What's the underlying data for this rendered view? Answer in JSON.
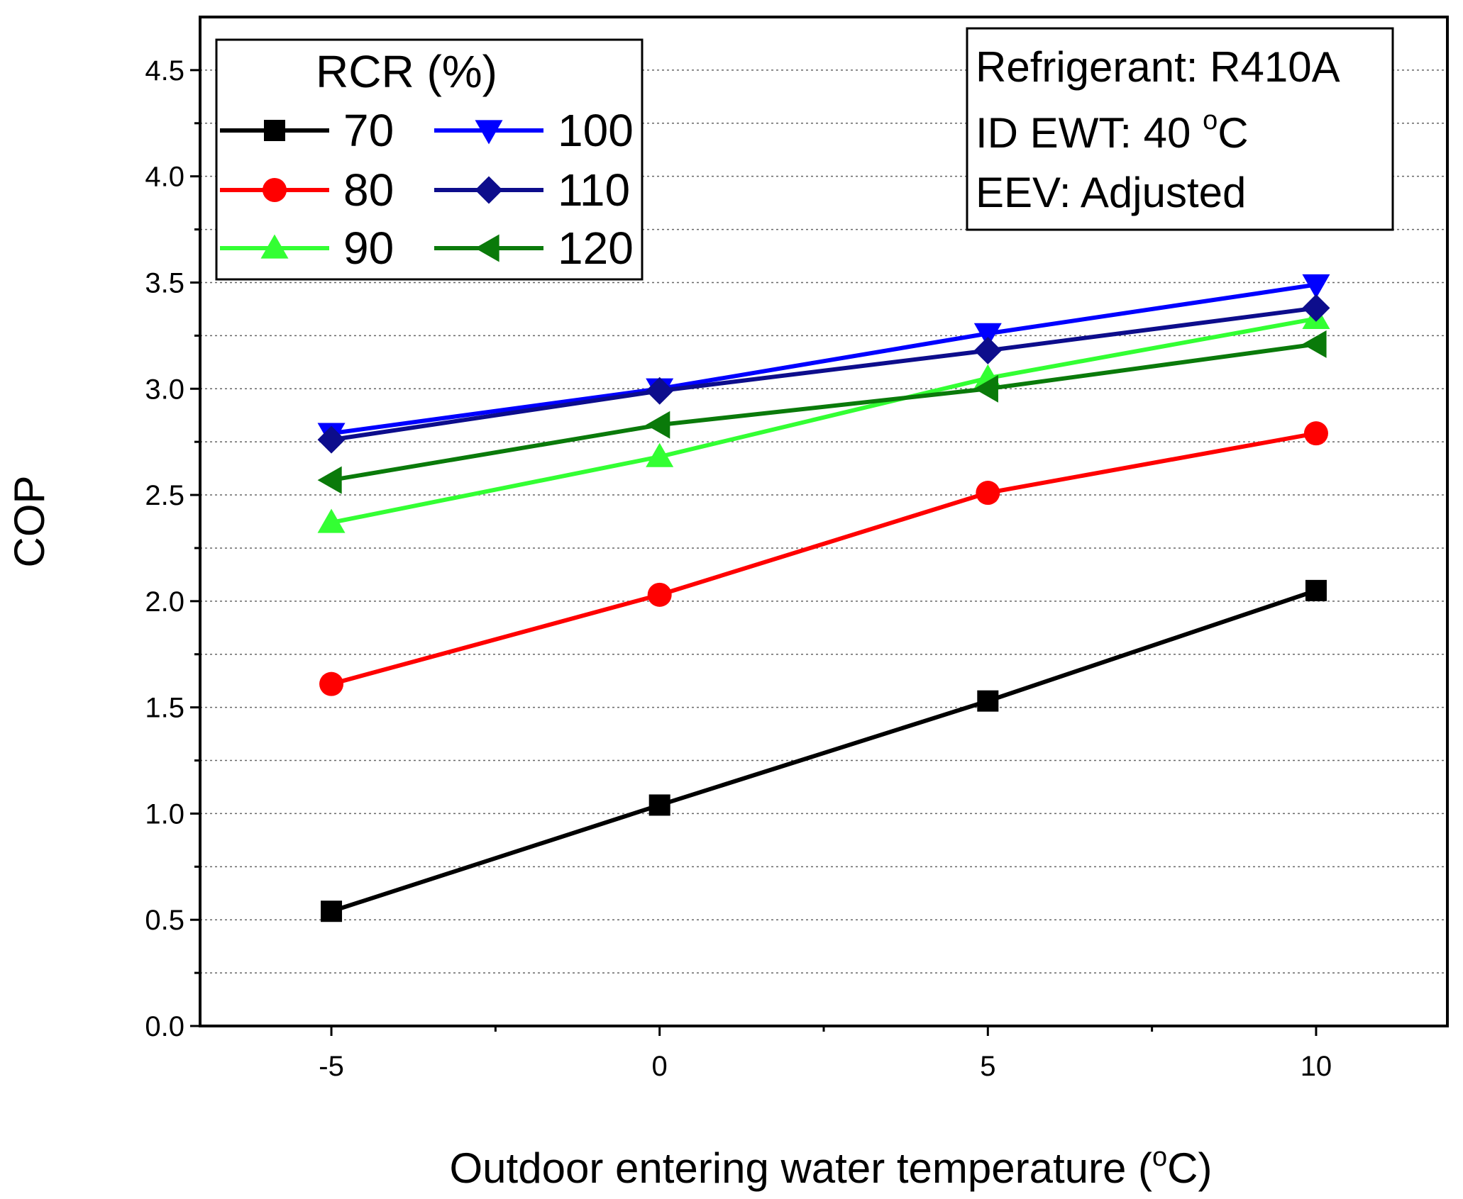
{
  "chart_data": {
    "type": "line",
    "xlabel": "Outdoor entering water temperature (",
    "xlabel_sup": "o",
    "xlabel_end": "C)",
    "ylabel": "COP",
    "x": [
      -5,
      0,
      5,
      10
    ],
    "xlim": [
      -7,
      12
    ],
    "ylim": [
      0,
      4.75
    ],
    "xticks": [
      -5,
      0,
      5,
      10
    ],
    "xtick_labels": [
      "-5",
      "0",
      "5",
      "10"
    ],
    "yticks": [
      0,
      0.5,
      1,
      1.5,
      2,
      2.5,
      3,
      3.5,
      4,
      4.5
    ],
    "ytick_labels": [
      "0.0",
      "0.5",
      "1.0",
      "1.5",
      "2.0",
      "2.5",
      "3.0",
      "3.5",
      "4.0",
      "4.5"
    ],
    "grid": "horizontal dotted",
    "legend_title": "RCR (%)",
    "legend_position": "top-left",
    "series": [
      {
        "name": "70",
        "color": "#000000",
        "marker": "square",
        "values": [
          0.54,
          1.04,
          1.53,
          2.05
        ]
      },
      {
        "name": "80",
        "color": "#ff0000",
        "marker": "circle",
        "values": [
          1.61,
          2.03,
          2.51,
          2.79
        ]
      },
      {
        "name": "90",
        "color": "#33ff33",
        "marker": "triangle-up",
        "values": [
          2.37,
          2.68,
          3.05,
          3.33
        ]
      },
      {
        "name": "100",
        "color": "#0000ff",
        "marker": "triangle-down",
        "values": [
          2.79,
          3.0,
          3.26,
          3.49
        ]
      },
      {
        "name": "110",
        "color": "#0d0d8c",
        "marker": "diamond",
        "values": [
          2.76,
          2.99,
          3.18,
          3.38
        ]
      },
      {
        "name": "120",
        "color": "#0a7a0a",
        "marker": "triangle-left",
        "values": [
          2.57,
          2.83,
          3.0,
          3.21
        ]
      }
    ]
  },
  "info_box": {
    "line1": "Refrigerant: R410A",
    "line2_prefix": "ID EWT: 40 ",
    "line2_sup": "o",
    "line2_suffix": "C",
    "line3": "EEV: Adjusted"
  }
}
